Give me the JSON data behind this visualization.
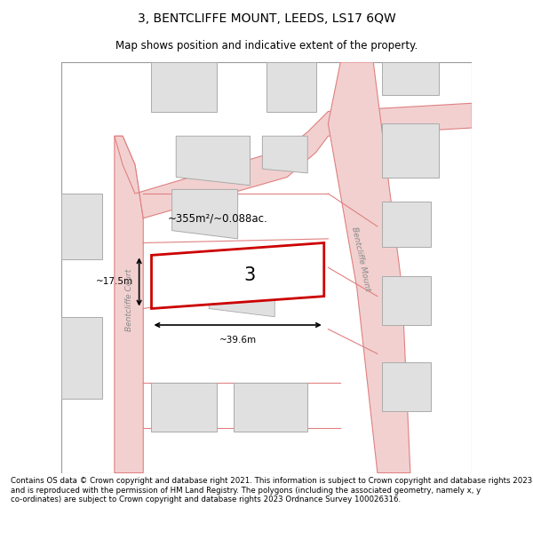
{
  "title": "3, BENTCLIFFE MOUNT, LEEDS, LS17 6QW",
  "subtitle": "Map shows position and indicative extent of the property.",
  "footer": "Contains OS data © Crown copyright and database right 2021. This information is subject to Crown copyright and database rights 2023 and is reproduced with the permission of HM Land Registry. The polygons (including the associated geometry, namely x, y co-ordinates) are subject to Crown copyright and database rights 2023 Ordnance Survey 100026316.",
  "map_bg": "#ffffff",
  "road_line_color": "#e08080",
  "road_fill_color": "#f2d0d0",
  "building_fill": "#e0e0e0",
  "building_edge": "#aaaaaa",
  "highlight_edge": "#cc0000",
  "highlight_lw": 2.0,
  "area_text": "~355m²/~0.088ac.",
  "number_text": "3",
  "width_text": "~39.6m",
  "height_text": "~17.5m",
  "street1": "Bentcliffe Court",
  "street2": "Bentcliffe Mount",
  "title_fontsize": 10,
  "subtitle_fontsize": 8.5,
  "footer_fontsize": 6.2
}
